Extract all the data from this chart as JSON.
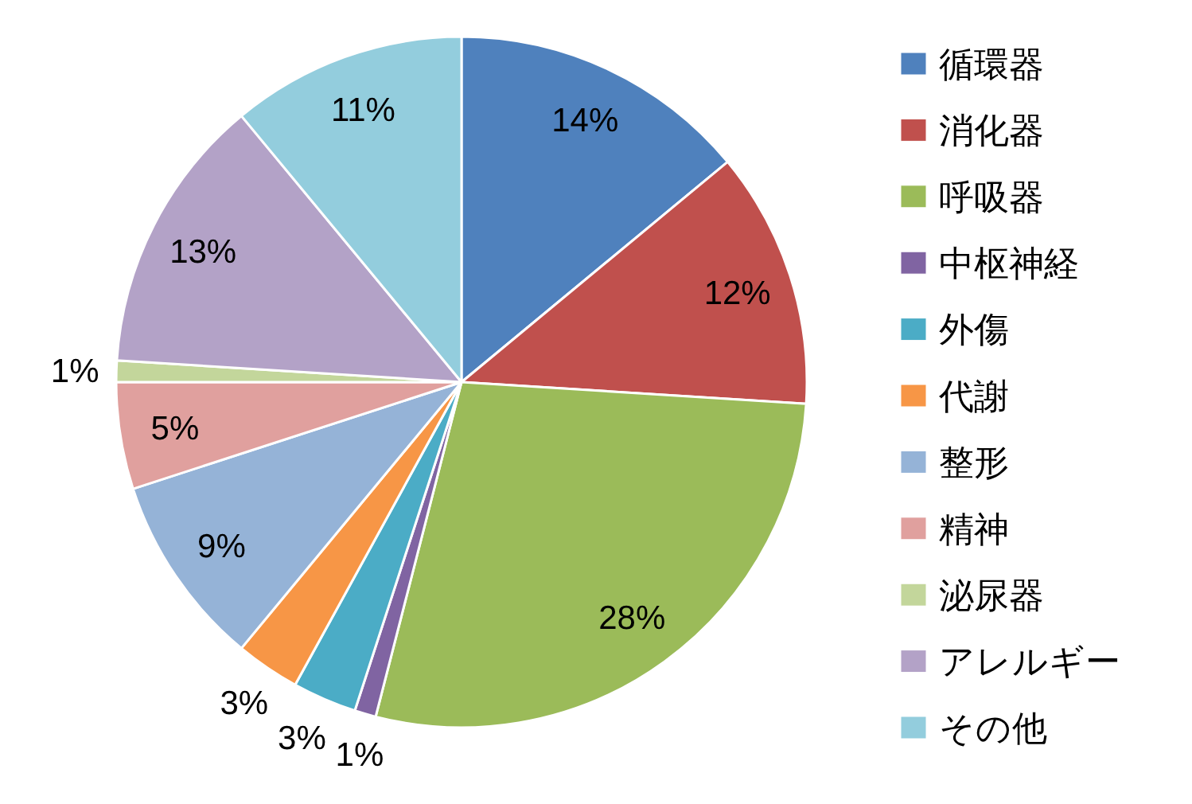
{
  "chart_data": {
    "type": "pie",
    "categories": [
      "循環器",
      "消化器",
      "呼吸器",
      "中枢神経",
      "外傷",
      "代謝",
      "整形",
      "精神",
      "泌尿器",
      "アレルギー",
      "その他"
    ],
    "values": [
      14,
      12,
      28,
      1,
      3,
      3,
      9,
      5,
      1,
      13,
      11
    ],
    "colors": [
      "#4f81bd",
      "#c0504d",
      "#9bbb59",
      "#8064a2",
      "#4bacc6",
      "#f79646",
      "#95b3d7",
      "#e0a09e",
      "#c3d69b",
      "#b3a2c7",
      "#93cddd"
    ],
    "value_labels": [
      "14%",
      "12%",
      "28%",
      "1%",
      "3%",
      "3%",
      "9%",
      "5%",
      "1%",
      "13%",
      "11%"
    ],
    "legend": "right"
  }
}
